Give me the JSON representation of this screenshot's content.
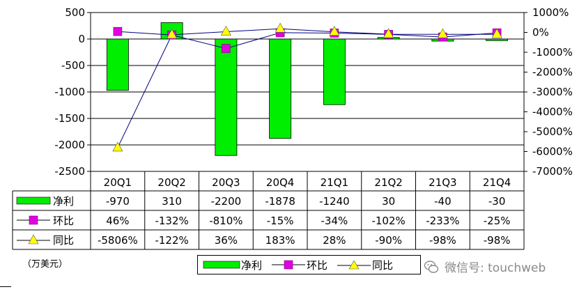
{
  "chart_data": {
    "type": "bar+line",
    "categories": [
      "20Q1",
      "20Q2",
      "20Q3",
      "20Q4",
      "21Q1",
      "21Q2",
      "21Q3",
      "21Q4"
    ],
    "series": [
      {
        "name": "净利",
        "type": "bar",
        "axis": "left",
        "color": "#00ee00",
        "values": [
          -970,
          310,
          -2200,
          -1878,
          -1240,
          30,
          -40,
          -30
        ],
        "labels": [
          "-970",
          "310",
          "-2200",
          "-1878",
          "-1240",
          "30",
          "-40",
          "-30"
        ]
      },
      {
        "name": "环比",
        "type": "line",
        "axis": "right",
        "marker": "square",
        "color": "#e000e0",
        "values": [
          46,
          -132,
          -810,
          -15,
          -34,
          -102,
          -233,
          -25
        ],
        "labels": [
          "46%",
          "-132%",
          "-810%",
          "-15%",
          "-34%",
          "-102%",
          "-233%",
          "-25%"
        ]
      },
      {
        "name": "同比",
        "type": "line",
        "axis": "right",
        "marker": "triangle",
        "color": "#ffff00",
        "values": [
          -5806,
          -122,
          36,
          183,
          28,
          -90,
          -98,
          -98
        ],
        "labels": [
          "-5806%",
          "-122%",
          "36%",
          "183%",
          "28%",
          "-90%",
          "-98%",
          "-98%"
        ]
      }
    ],
    "left_axis": {
      "min": -2500,
      "max": 500,
      "ticks": [
        500,
        0,
        -500,
        -1000,
        -1500,
        -2000,
        -2500
      ],
      "tick_labels": [
        "500",
        "0",
        "-500",
        "-1000",
        "-1500",
        "-2000",
        "-2500"
      ]
    },
    "right_axis": {
      "min": -7000,
      "max": 1000,
      "ticks": [
        1000,
        0,
        -1000,
        -2000,
        -3000,
        -4000,
        -5000,
        -6000,
        -7000
      ],
      "tick_labels": [
        "1000%",
        "0%",
        "-1000%",
        "-2000%",
        "-3000%",
        "-4000%",
        "-5000%",
        "-6000%",
        "-7000%"
      ]
    },
    "grid": true,
    "legend": "bottom",
    "unit_label": "（万美元）"
  },
  "watermark": {
    "text": "微信号: touchweb",
    "icon": "wechat-icon"
  }
}
